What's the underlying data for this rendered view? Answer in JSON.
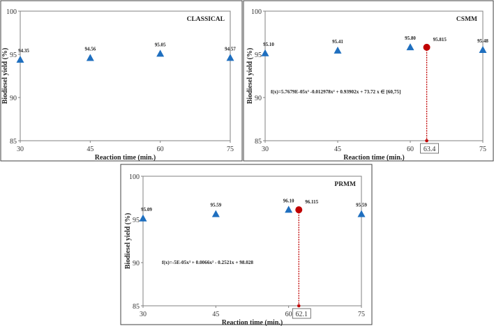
{
  "colors": {
    "marker": "#1f6fbf",
    "optimum": "#c00000",
    "axis": "#808080",
    "frame": "#404040"
  },
  "chart_data": [
    {
      "type": "scatter",
      "title": "CLASSICAL",
      "xlabel": "Reaction time (min.)",
      "ylabel": "Biodiesel yield (%)",
      "xlim": [
        30,
        75
      ],
      "ylim": [
        85,
        100
      ],
      "xticks": [
        30,
        45,
        60,
        75
      ],
      "yticks": [
        85,
        90,
        95,
        100
      ],
      "grid": false,
      "x": [
        30,
        45,
        60,
        75
      ],
      "y": [
        94.35,
        94.56,
        95.05,
        94.57
      ],
      "labels": [
        "94.35",
        "94.56",
        "95.05",
        "94.57"
      ],
      "marker": "triangle"
    },
    {
      "type": "scatter",
      "title": "CSMM",
      "xlabel": "Reaction time (min.)",
      "ylabel": "Biodiesel yield (%)",
      "xlim": [
        30,
        75
      ],
      "ylim": [
        85,
        100
      ],
      "xticks": [
        30,
        45,
        60,
        75
      ],
      "yticks": [
        85,
        90,
        95,
        100
      ],
      "grid": false,
      "x": [
        30,
        45,
        60,
        75
      ],
      "y": [
        95.1,
        95.41,
        95.8,
        95.48
      ],
      "labels": [
        "95.10",
        "95.41",
        "95.80",
        "95.48"
      ],
      "marker": "triangle",
      "optimum": {
        "x": 63.4,
        "y": 95.815,
        "x_label": "63.4",
        "y_label": "95.815"
      },
      "equation": "f(x)=5.7679E-05x³ -0.012978x² + 0.93902x + 73.72    x ∈ [60,75]"
    },
    {
      "type": "scatter",
      "title": "PRMM",
      "xlabel": "Reaction time (min.)",
      "ylabel": "Biodiesel yield (%)",
      "xlim": [
        30,
        75
      ],
      "ylim": [
        85,
        100
      ],
      "xticks": [
        30,
        45,
        60,
        75
      ],
      "yticks": [
        85,
        90,
        95,
        100
      ],
      "grid": false,
      "x": [
        30,
        45,
        60,
        75
      ],
      "y": [
        95.09,
        95.59,
        96.1,
        95.59
      ],
      "labels": [
        "95.09",
        "95.59",
        "96.10",
        "95.59"
      ],
      "marker": "triangle",
      "optimum": {
        "x": 62.1,
        "y": 96.115,
        "x_label": "62.1",
        "y_label": "96.115"
      },
      "equation": "f(x)=-5E-05x³ + 0.0066x² - 0.2521x + 98.028"
    }
  ]
}
